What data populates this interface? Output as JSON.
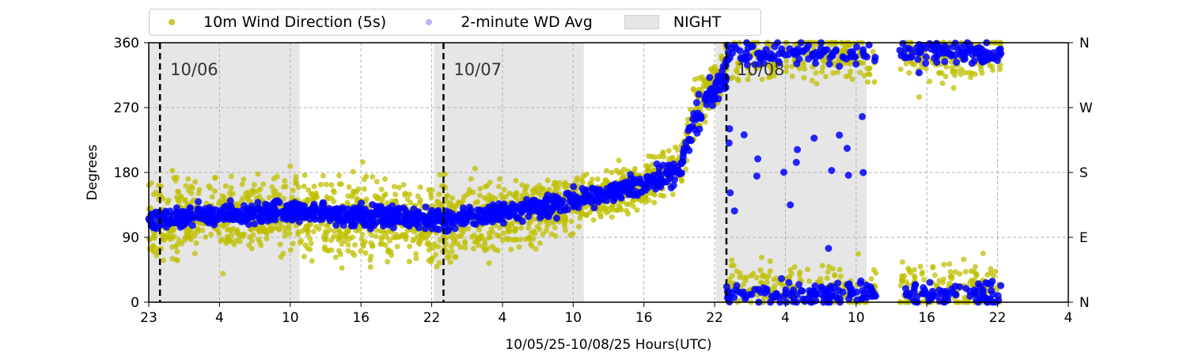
{
  "chart_data": {
    "type": "scatter",
    "title": "",
    "xlabel": "10/05/25-10/08/25  Hours(UTC)",
    "ylabel": "Degrees",
    "xlim_hours": [
      0,
      78
    ],
    "xtick_labels": [
      "23",
      "4",
      "10",
      "16",
      "22",
      "4",
      "10",
      "16",
      "22",
      "4",
      "10",
      "16",
      "22",
      "4"
    ],
    "ylim": [
      0,
      360
    ],
    "yticks": [
      0,
      90,
      180,
      270,
      360
    ],
    "right_tick_labels": [
      "N",
      "E",
      "S",
      "W",
      "N"
    ],
    "grid": true,
    "legend_placement": "top-left (above plot)",
    "legend": [
      "10m Wind Direction (5s)",
      "2-minute WD Avg",
      "NIGHT"
    ],
    "night_periods_hours": [
      [
        0,
        12.8
      ],
      [
        24.2,
        36.9
      ],
      [
        48.1,
        60.9
      ]
    ],
    "day_markers": [
      {
        "hour": 0.95,
        "label": "10/06"
      },
      {
        "hour": 25.0,
        "label": "10/07"
      },
      {
        "hour": 49.0,
        "label": "10/08"
      }
    ],
    "data_gaps_hours": [
      [
        61.7,
        63.7
      ]
    ],
    "data_end_hour": 72.3,
    "series": [
      {
        "name": "10m Wind Direction (5s)",
        "color": "#bfbf00",
        "trend": [
          [
            0,
            115,
            45
          ],
          [
            12,
            120,
            45
          ],
          [
            24,
            110,
            45
          ],
          [
            30,
            120,
            40
          ],
          [
            36,
            135,
            30
          ],
          [
            42,
            165,
            25
          ],
          [
            45,
            190,
            25
          ],
          [
            46.5,
            270,
            30
          ],
          [
            49,
            330,
            25
          ]
        ],
        "bimodal_after_hour": 49,
        "bimodal_modes": [
          [
            340,
            25
          ],
          [
            20,
            25
          ]
        ]
      },
      {
        "name": "2-minute WD Avg",
        "color": "#0000ff",
        "trend": [
          [
            0,
            115,
            12
          ],
          [
            12,
            125,
            12
          ],
          [
            24,
            115,
            12
          ],
          [
            30,
            125,
            12
          ],
          [
            36,
            140,
            12
          ],
          [
            42,
            165,
            12
          ],
          [
            45,
            185,
            12
          ],
          [
            46.5,
            260,
            20
          ],
          [
            49,
            320,
            15
          ]
        ],
        "bimodal_after_hour": 49,
        "bimodal_modes": [
          [
            345,
            12
          ],
          [
            12,
            12
          ]
        ]
      }
    ]
  },
  "night_color": "#e6e6e6"
}
